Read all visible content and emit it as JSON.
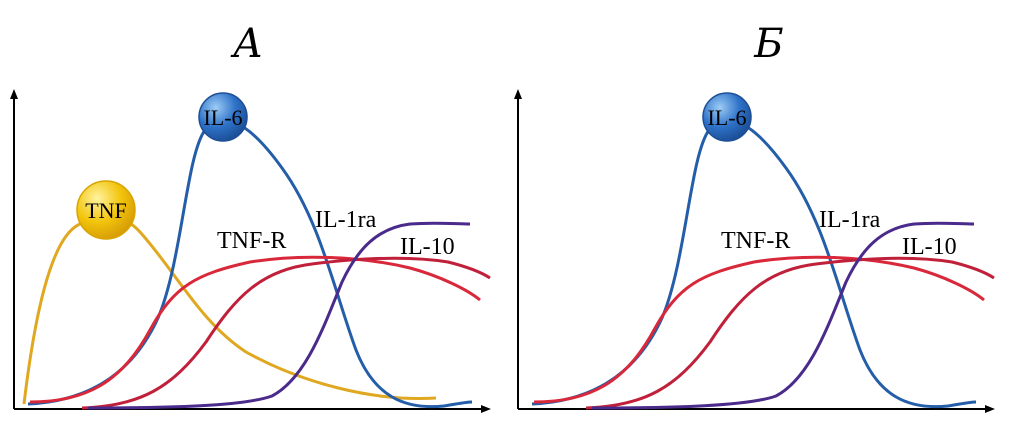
{
  "chart_data": [
    {
      "type": "line",
      "title": "А",
      "xlabel": "",
      "ylabel": "",
      "grid": false,
      "series": [
        {
          "name": "TNF",
          "color": "#E0A820",
          "label_style": "bubble",
          "bubble_color": "#F2C40A"
        },
        {
          "name": "IL-6",
          "color": "#245EA8",
          "label_style": "bubble",
          "bubble_color": "#2E72C8"
        },
        {
          "name": "TNF-R",
          "color": "#D8283A",
          "label_style": "text"
        },
        {
          "name": "IL-1ra",
          "color": "#4A2A8A",
          "label_style": "text"
        },
        {
          "name": "IL-10",
          "color": "#C0203A",
          "label_style": "text"
        }
      ]
    },
    {
      "type": "line",
      "title": "Б",
      "xlabel": "",
      "ylabel": "",
      "grid": false,
      "series": [
        {
          "name": "IL-6",
          "color": "#245EA8",
          "label_style": "bubble",
          "bubble_color": "#2E72C8"
        },
        {
          "name": "TNF-R",
          "color": "#D8283A",
          "label_style": "text"
        },
        {
          "name": "IL-1ra",
          "color": "#4A2A8A",
          "label_style": "text"
        },
        {
          "name": "IL-10",
          "color": "#C0203A",
          "label_style": "text"
        }
      ]
    }
  ]
}
